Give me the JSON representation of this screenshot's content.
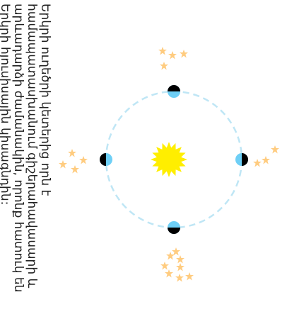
{
  "question": {
    "text": "Երկրի ուղեծրի կետերից որն է համապատասխանում գիշերահավասարի և արևադարձի ժամանակին, որոնք հատուկ են Երկրի հյուսիսային կիսագնդին:"
  },
  "colors": {
    "orbit": "#bfe6f5",
    "sun": "#ffee00",
    "earth_lit": "#6ecff6",
    "earth_dark": "#000000",
    "stars": "#ffcc80"
  },
  "icons": {
    "sun": "sun-icon",
    "earth": "earth-icon",
    "constellation": "star-icon"
  },
  "earth_positions": [
    "top",
    "right",
    "bottom",
    "left"
  ],
  "constellations": [
    "top",
    "right",
    "bottom",
    "left"
  ]
}
